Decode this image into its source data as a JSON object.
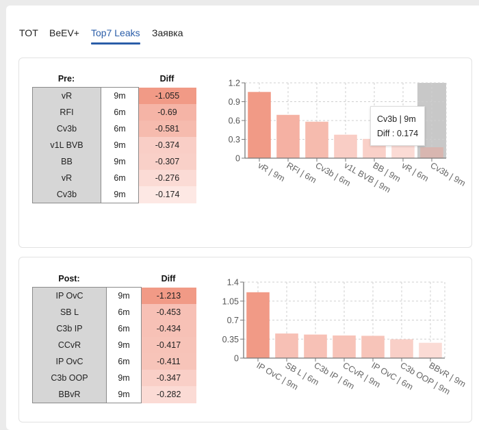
{
  "tabs": [
    {
      "label": "TOT",
      "active": false
    },
    {
      "label": "BeEV+",
      "active": false
    },
    {
      "label": "Top7 Leaks",
      "active": true
    },
    {
      "label": "Заявка",
      "active": false
    }
  ],
  "colors": {
    "accent": "#2a5da8",
    "highlight_bar": "#c8c8c8",
    "diff_scale_max": "#f19a86",
    "diff_scale_min": "#fde8e4"
  },
  "pre": {
    "header_left": "Pre:",
    "header_diff": "Diff",
    "rows": [
      {
        "name": "vR",
        "time": "9m",
        "diff": "-1.055",
        "color": "#f19a86"
      },
      {
        "name": "RFI",
        "time": "6m",
        "diff": "-0.69",
        "color": "#f5b4a6"
      },
      {
        "name": "Cv3b",
        "time": "6m",
        "diff": "-0.581",
        "color": "#f6bbae"
      },
      {
        "name": "v1L BVB",
        "time": "9m",
        "diff": "-0.374",
        "color": "#f9cec6"
      },
      {
        "name": "BB",
        "time": "9m",
        "diff": "-0.307",
        "color": "#f9d0c8"
      },
      {
        "name": "vR",
        "time": "6m",
        "diff": "-0.276",
        "color": "#fbdbd5"
      },
      {
        "name": "Cv3b",
        "time": "9m",
        "diff": "-0.174",
        "color": "#fde8e4"
      }
    ],
    "tooltip": {
      "title": "Cv3b | 9m",
      "value_line": "Diff : 0.174"
    }
  },
  "post": {
    "header_left": "Post:",
    "header_diff": "Diff",
    "rows": [
      {
        "name": "IP OvC",
        "time": "9m",
        "diff": "-1.213",
        "color": "#f19a86"
      },
      {
        "name": "SB L",
        "time": "6m",
        "diff": "-0.453",
        "color": "#f7c0b5"
      },
      {
        "name": "C3b IP",
        "time": "6m",
        "diff": "-0.434",
        "color": "#f7c1b6"
      },
      {
        "name": "CCvR",
        "time": "9m",
        "diff": "-0.417",
        "color": "#f7c3b8"
      },
      {
        "name": "IP OvC",
        "time": "6m",
        "diff": "-0.411",
        "color": "#f7c4b9"
      },
      {
        "name": "C3b OOP",
        "time": "9m",
        "diff": "-0.347",
        "color": "#f9cfc7"
      },
      {
        "name": "BBvR",
        "time": "9m",
        "diff": "-0.282",
        "color": "#fbdbd5"
      }
    ]
  },
  "chart_data": [
    {
      "type": "bar",
      "title": "",
      "xlabel": "",
      "ylabel": "",
      "categories": [
        "vR | 9m",
        "RFI | 6m",
        "Cv3b | 6m",
        "v1L BVB | 9m",
        "BB | 9m",
        "vR | 6m",
        "Cv3b | 9m"
      ],
      "values": [
        1.055,
        0.69,
        0.581,
        0.374,
        0.307,
        0.276,
        0.174
      ],
      "bar_colors": [
        "#f19a86",
        "#f5b1a3",
        "#f6bbae",
        "#f9cdc5",
        "#f9d0c8",
        "#fbdbd5",
        "#d8b6b0"
      ],
      "ylim": [
        0,
        1.2
      ],
      "yticks": [
        "0",
        "0.3",
        "0.6",
        "0.9",
        "1.2"
      ],
      "ytick_values": [
        0,
        0.3,
        0.6,
        0.9,
        1.2
      ],
      "grid": true,
      "highlighted_index": 6
    },
    {
      "type": "bar",
      "title": "",
      "xlabel": "",
      "ylabel": "",
      "categories": [
        "IP OvC | 9m",
        "SB L | 6m",
        "C3b IP | 6m",
        "CCvR | 9m",
        "IP OvC | 6m",
        "C3b OOP | 9m",
        "BBvR | 9m"
      ],
      "values": [
        1.213,
        0.453,
        0.434,
        0.417,
        0.411,
        0.347,
        0.282
      ],
      "bar_colors": [
        "#f19a86",
        "#f7c0b5",
        "#f7c1b6",
        "#f7c3b8",
        "#f7c4b9",
        "#f9cfc7",
        "#fbdbd5"
      ],
      "ylim": [
        0,
        1.4
      ],
      "yticks": [
        "0",
        "0.35",
        "0.7",
        "1.05",
        "1.4"
      ],
      "ytick_values": [
        0,
        0.35,
        0.7,
        1.05,
        1.4
      ],
      "grid": true
    }
  ]
}
